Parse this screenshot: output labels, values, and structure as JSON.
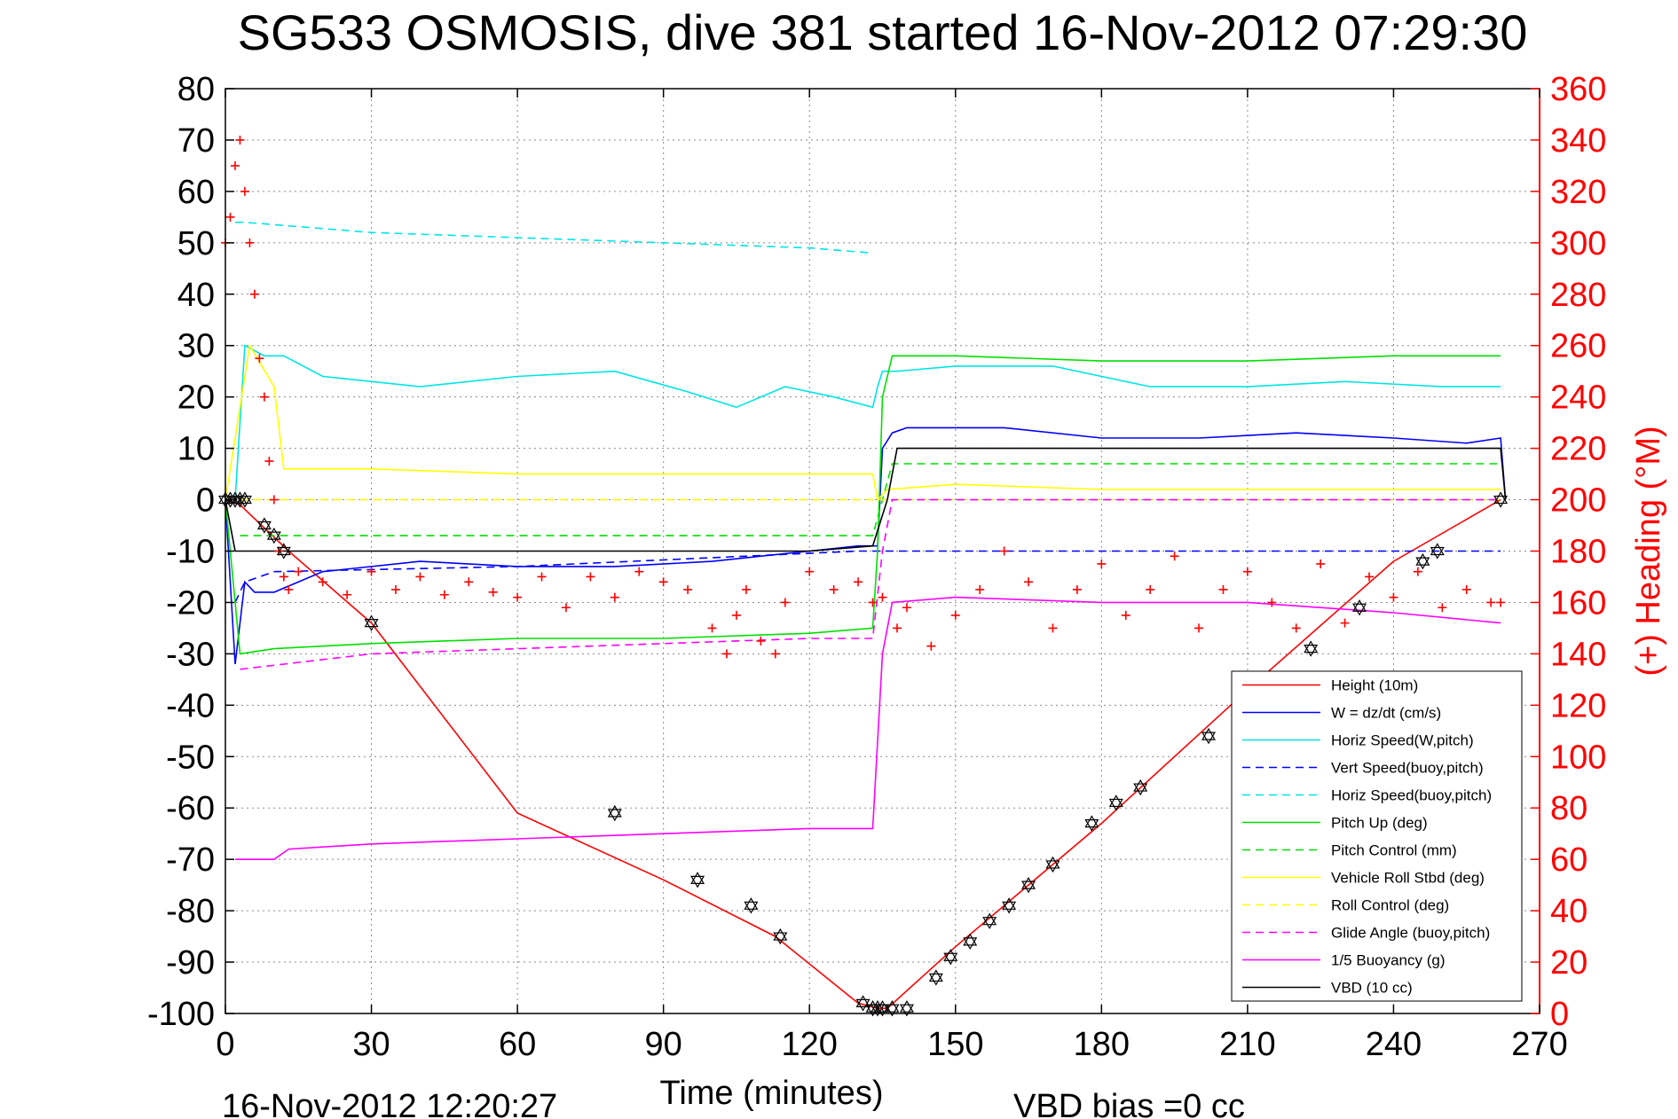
{
  "chart_data": {
    "type": "line",
    "title": "SG533 OSMOSIS, dive 381 started 16-Nov-2012 07:29:30",
    "xlabel": "Time (minutes)",
    "ylabel": "",
    "y2label": "(+) Heading (°M)",
    "xlim": [
      0,
      270
    ],
    "ylim": [
      -100,
      80
    ],
    "y2lim": [
      0,
      360
    ],
    "xticks": [
      "0",
      "30",
      "60",
      "90",
      "120",
      "150",
      "180",
      "210",
      "240",
      "270"
    ],
    "yticks": [
      "80",
      "70",
      "60",
      "50",
      "40",
      "30",
      "20",
      "10",
      "0",
      "-10",
      "-20",
      "-30",
      "-40",
      "-50",
      "-60",
      "-70",
      "-80",
      "-90",
      "-100"
    ],
    "y2ticks": [
      "360",
      "340",
      "320",
      "300",
      "280",
      "260",
      "240",
      "220",
      "200",
      "180",
      "160",
      "140",
      "120",
      "100",
      "80",
      "60",
      "40",
      "20",
      "0"
    ],
    "grid": true,
    "legend_position": "bottom-right",
    "footer_left": "16-Nov-2012 12:20:27",
    "footer_right": "VBD bias =0 cc",
    "series": [
      {
        "name": "Height (10m)",
        "color": "#ff0000",
        "style": "solid",
        "x": [
          0,
          3,
          13,
          30,
          60,
          90,
          113,
          130,
          134,
          136,
          150,
          180,
          210,
          240,
          262
        ],
        "y": [
          0,
          -1,
          -10,
          -24,
          -61,
          -74,
          -85,
          -98,
          -99,
          -99,
          -87,
          -63,
          -37,
          -12,
          0
        ]
      },
      {
        "name": "W = dz/dt (cm/s)",
        "color": "#0000ff",
        "style": "solid",
        "x": [
          0,
          2,
          4,
          6,
          10,
          20,
          40,
          60,
          80,
          100,
          120,
          130,
          134,
          135,
          137,
          140,
          160,
          180,
          200,
          220,
          240,
          255,
          262,
          263
        ],
        "y": [
          0,
          -32,
          -16,
          -18,
          -18,
          -14,
          -12,
          -13,
          -13,
          -12,
          -10,
          -9,
          -9,
          10,
          13,
          14,
          14,
          12,
          12,
          13,
          12,
          11,
          12,
          0
        ]
      },
      {
        "name": "Horiz Speed(W,pitch)",
        "color": "#00e5e5",
        "style": "solid",
        "x": [
          2,
          4,
          8,
          12,
          20,
          40,
          60,
          80,
          95,
          105,
          115,
          125,
          133,
          134,
          135,
          138,
          150,
          170,
          190,
          210,
          230,
          250,
          262
        ],
        "y": [
          0,
          30,
          28,
          28,
          24,
          22,
          24,
          25,
          21,
          18,
          22,
          20,
          18,
          22,
          25,
          25,
          26,
          26,
          22,
          22,
          23,
          22,
          22
        ]
      },
      {
        "name": "Vert Speed(buoy,pitch)",
        "color": "#0000ff",
        "style": "dashed",
        "x": [
          2,
          4,
          10,
          60,
          130,
          134,
          136,
          262
        ],
        "y": [
          -20,
          -16,
          -14,
          -13,
          -10,
          -10,
          -10,
          -10
        ]
      },
      {
        "name": "Horiz Speed(buoy,pitch)",
        "color": "#00e5e5",
        "style": "dashed",
        "x": [
          2,
          4,
          30,
          60,
          90,
          120,
          133
        ],
        "y": [
          54,
          54,
          52,
          51,
          50,
          49,
          48
        ]
      },
      {
        "name": "Pitch Up (deg)",
        "color": "#00e000",
        "style": "solid",
        "x": [
          0,
          3,
          10,
          30,
          60,
          90,
          120,
          133,
          134,
          135,
          137,
          150,
          180,
          210,
          240,
          262
        ],
        "y": [
          0,
          -30,
          -29,
          -28,
          -27,
          -27,
          -26,
          -25,
          -10,
          20,
          28,
          28,
          27,
          27,
          28,
          28
        ]
      },
      {
        "name": "Pitch Control (mm)",
        "color": "#00e000",
        "style": "dashed",
        "x": [
          3,
          60,
          133,
          135,
          137,
          262
        ],
        "y": [
          -7,
          -7,
          -7,
          0,
          7,
          7
        ]
      },
      {
        "name": "Vehicle Roll Stbd (deg)",
        "color": "#ffff00",
        "style": "solid",
        "x": [
          0,
          5,
          10,
          12,
          30,
          60,
          90,
          120,
          133,
          134,
          136,
          150,
          180,
          210,
          240,
          262
        ],
        "y": [
          0,
          30,
          22,
          6,
          6,
          5,
          5,
          5,
          5,
          0,
          2,
          3,
          2,
          2,
          2,
          2
        ]
      },
      {
        "name": "Roll Control (deg)",
        "color": "#ffff00",
        "style": "dashed",
        "x": [
          3,
          133,
          136,
          262
        ],
        "y": [
          0,
          0,
          0,
          0
        ]
      },
      {
        "name": "Glide Angle (buoy,pitch)",
        "color": "#ff00ff",
        "style": "dashed",
        "x": [
          3,
          30,
          60,
          90,
          120,
          133,
          135,
          137,
          262
        ],
        "y": [
          -33,
          -30,
          -29,
          -28,
          -27,
          -27,
          -10,
          0,
          0
        ]
      },
      {
        "name": "1/5 Buoyancy (g)",
        "color": "#ff00ff",
        "style": "solid",
        "x": [
          2,
          10,
          13,
          30,
          60,
          90,
          120,
          133,
          135,
          137,
          150,
          180,
          210,
          240,
          262
        ],
        "y": [
          -70,
          -70,
          -68,
          -67,
          -66,
          -65,
          -64,
          -64,
          -30,
          -20,
          -19,
          -20,
          -20,
          -22,
          -24
        ]
      },
      {
        "name": "VBD (10 cc)",
        "color": "#000000",
        "style": "solid",
        "x": [
          0,
          2,
          3,
          30,
          60,
          90,
          120,
          133,
          136,
          138,
          262,
          263
        ],
        "y": [
          0,
          -10,
          -10,
          -10,
          -10,
          -10,
          -10,
          -9,
          0,
          10,
          10,
          0
        ]
      }
    ],
    "heading_series": {
      "name": "(+) Heading",
      "color": "#ff0000",
      "marker": "+",
      "axis": "right",
      "x": [
        0,
        1,
        2,
        3,
        4,
        5,
        6,
        7,
        8,
        9,
        10,
        11,
        12,
        13,
        15,
        20,
        25,
        30,
        35,
        40,
        45,
        50,
        55,
        60,
        65,
        70,
        75,
        80,
        85,
        90,
        95,
        100,
        103,
        105,
        107,
        110,
        113,
        115,
        120,
        125,
        130,
        133,
        135,
        138,
        140,
        145,
        150,
        155,
        160,
        165,
        170,
        175,
        180,
        185,
        190,
        195,
        200,
        205,
        210,
        215,
        220,
        225,
        230,
        235,
        240,
        245,
        250,
        255,
        260,
        262
      ],
      "y": [
        300,
        310,
        330,
        340,
        320,
        300,
        280,
        255,
        240,
        215,
        200,
        180,
        170,
        165,
        172,
        168,
        163,
        172,
        165,
        170,
        163,
        168,
        164,
        162,
        170,
        158,
        170,
        162,
        172,
        168,
        165,
        150,
        140,
        155,
        165,
        145,
        140,
        160,
        172,
        165,
        168,
        160,
        162,
        150,
        158,
        143,
        155,
        165,
        180,
        168,
        150,
        165,
        175,
        155,
        165,
        178,
        150,
        165,
        172,
        160,
        150,
        175,
        152,
        170,
        162,
        172,
        158,
        165,
        160,
        160
      ]
    },
    "markers": {
      "type": "dive markers",
      "x": [
        0,
        1,
        2,
        3,
        4,
        8,
        10,
        12,
        30,
        80,
        97,
        108,
        114,
        131,
        133,
        134,
        135,
        137,
        140,
        146,
        149,
        153,
        157,
        161,
        165,
        170,
        178,
        183,
        188,
        202,
        223,
        233,
        246,
        249,
        262
      ],
      "y": [
        0,
        0,
        0,
        0,
        0,
        -5,
        -7,
        -10,
        -24,
        -61,
        -74,
        -79,
        -85,
        -98,
        -99,
        -99,
        -99,
        -99,
        -99,
        -93,
        -89,
        -86,
        -82,
        -79,
        -75,
        -71,
        -63,
        -59,
        -56,
        -46,
        -29,
        -21,
        -12,
        -10,
        0
      ]
    }
  }
}
